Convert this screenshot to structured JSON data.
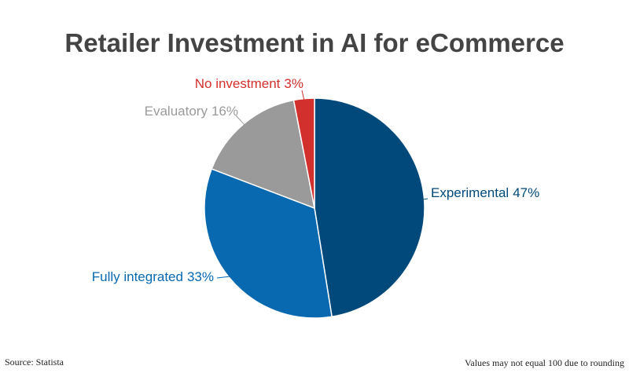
{
  "chart_data": {
    "type": "pie",
    "title": "Retailer Investment in AI for eCommerce",
    "categories": [
      "Experimental",
      "Fully integrated",
      "Evaluatory",
      "No investment"
    ],
    "values": [
      47,
      33,
      16,
      3
    ],
    "value_labels": [
      "47%",
      "33%",
      "16%",
      "3%"
    ],
    "colors": [
      "#00497a",
      "#0868b0",
      "#9a9a9a",
      "#d2302c"
    ],
    "source": "Source: Statista",
    "note": "Values may not equal 100 due to rounding"
  }
}
